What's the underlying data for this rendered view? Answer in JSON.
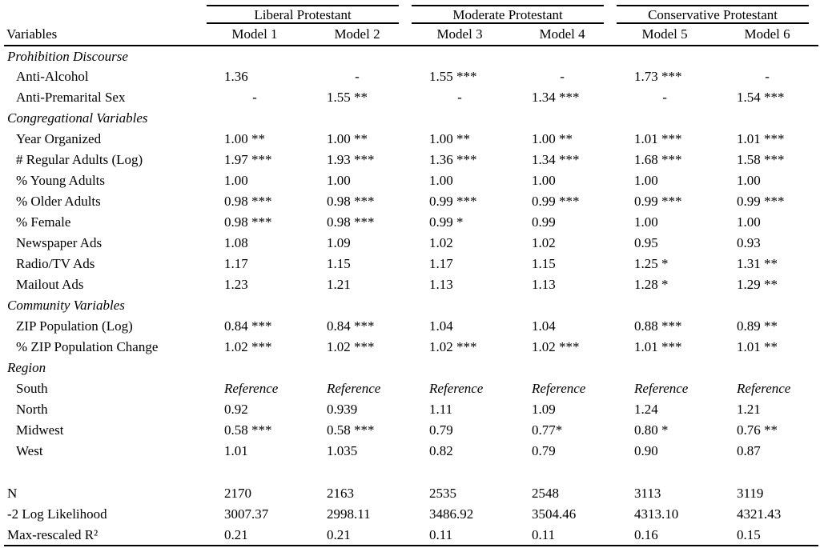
{
  "table": {
    "variables_header": "Variables",
    "groups": [
      {
        "label": "Liberal Protestant",
        "models": [
          "Model 1",
          "Model 2"
        ]
      },
      {
        "label": "Moderate Protestant",
        "models": [
          "Model 3",
          "Model 4"
        ]
      },
      {
        "label": "Conservative Protestant",
        "models": [
          "Model 5",
          "Model 6"
        ]
      }
    ],
    "rows": [
      {
        "type": "section",
        "label": "Prohibition Discourse"
      },
      {
        "type": "data",
        "label": "Anti-Alcohol",
        "values": [
          "1.36",
          "-",
          "1.55 ***",
          "-",
          "1.73 ***",
          "-"
        ]
      },
      {
        "type": "data",
        "label": "Anti-Premarital Sex",
        "values": [
          "-",
          "1.55 **",
          "-",
          "1.34 ***",
          "-",
          "1.54 ***"
        ]
      },
      {
        "type": "section",
        "label": "Congregational Variables"
      },
      {
        "type": "data",
        "label": "Year Organized",
        "values": [
          "1.00 **",
          "1.00 **",
          "1.00 **",
          "1.00 **",
          "1.01 ***",
          "1.01 ***"
        ]
      },
      {
        "type": "data",
        "label": "# Regular Adults (Log)",
        "values": [
          "1.97 ***",
          "1.93 ***",
          "1.36 ***",
          "1.34 ***",
          "1.68 ***",
          "1.58 ***"
        ]
      },
      {
        "type": "data",
        "label": "% Young Adults",
        "values": [
          "1.00",
          "1.00",
          "1.00",
          "1.00",
          "1.00",
          "1.00"
        ]
      },
      {
        "type": "data",
        "label": "% Older Adults",
        "values": [
          "0.98 ***",
          "0.98 ***",
          "0.99 ***",
          "0.99 ***",
          "0.99 ***",
          "0.99 ***"
        ]
      },
      {
        "type": "data",
        "label": "% Female",
        "values": [
          "0.98 ***",
          "0.98 ***",
          "0.99 *",
          "0.99",
          "1.00",
          "1.00"
        ]
      },
      {
        "type": "data",
        "label": "Newspaper Ads",
        "values": [
          "1.08",
          "1.09",
          "1.02",
          "1.02",
          "0.95",
          "0.93"
        ]
      },
      {
        "type": "data",
        "label": "Radio/TV Ads",
        "values": [
          "1.17",
          "1.15",
          "1.17",
          "1.15",
          "1.25 *",
          "1.31 **"
        ]
      },
      {
        "type": "data",
        "label": "Mailout Ads",
        "values": [
          "1.23",
          "1.21",
          "1.13",
          "1.13",
          "1.28 *",
          "1.29 **"
        ]
      },
      {
        "type": "section",
        "label": "Community Variables"
      },
      {
        "type": "data",
        "label": "ZIP Population (Log)",
        "values": [
          "0.84 ***",
          "0.84 ***",
          "1.04",
          "1.04",
          "0.88 ***",
          "0.89 **"
        ]
      },
      {
        "type": "data",
        "label": "% ZIP Population Change",
        "values": [
          "1.02 ***",
          "1.02 ***",
          "1.02 ***",
          "1.02 ***",
          "1.01 ***",
          "1.01 **"
        ]
      },
      {
        "type": "section",
        "label": "Region"
      },
      {
        "type": "data",
        "label": "South",
        "values": [
          "Reference",
          "Reference",
          "Reference",
          "Reference",
          "Reference",
          "Reference"
        ]
      },
      {
        "type": "data",
        "label": "North",
        "values": [
          "0.92",
          "0.939",
          "1.11",
          "1.09",
          "1.24",
          "1.21"
        ]
      },
      {
        "type": "data",
        "label": "Midwest",
        "values": [
          "0.58 ***",
          "0.58 ***",
          "0.79",
          "0.77*",
          "0.80 *",
          "0.76 **"
        ]
      },
      {
        "type": "data",
        "label": "West",
        "values": [
          "1.01",
          "1.035",
          "0.82",
          "0.79",
          "0.90",
          "0.87"
        ]
      },
      {
        "type": "blank"
      },
      {
        "type": "stat",
        "label": "N",
        "values": [
          "2170",
          "2163",
          "2535",
          "2548",
          "3113",
          "3119"
        ]
      },
      {
        "type": "stat",
        "label": "-2 Log Likelihood",
        "values": [
          "3007.37",
          "2998.11",
          "3486.92",
          "3504.46",
          "4313.10",
          "4321.43"
        ]
      },
      {
        "type": "stat",
        "label": "Max-rescaled R²",
        "values": [
          "0.21",
          "0.21",
          "0.11",
          "0.11",
          "0.16",
          "0.15"
        ]
      }
    ]
  }
}
